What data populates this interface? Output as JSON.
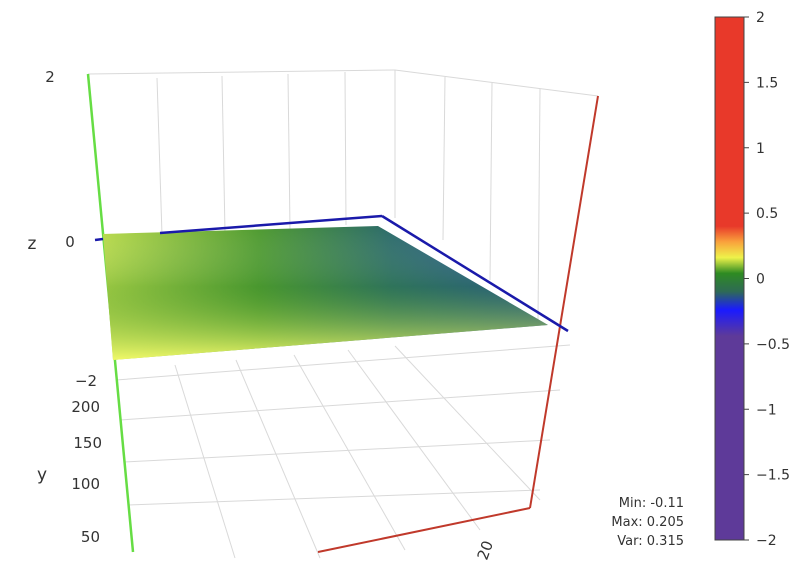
{
  "chart_data": {
    "type": "surface",
    "axes": {
      "z": {
        "label": "z",
        "ticks": [
          "2",
          "0",
          "−2"
        ],
        "range": [
          -2,
          2
        ]
      },
      "y": {
        "label": "y",
        "ticks": [
          "200",
          "150",
          "100",
          "50"
        ]
      },
      "x": {
        "label": "",
        "ticks": [
          "20"
        ]
      }
    },
    "grid": true,
    "colorbar": {
      "range": [
        -2,
        2
      ],
      "ticks": [
        "2",
        "1.5",
        "1",
        "0.5",
        "0",
        "−0.5",
        "−1",
        "−1.5",
        "−2"
      ],
      "colors": {
        "top": "#e8392a",
        "upper_band": "#e8392a",
        "orange": "#f9a23c",
        "yellow": "#eef24a",
        "green": "#2e8b22",
        "blue": "#1a1aff",
        "purple": "#5e3a99"
      }
    },
    "surface_colors": [
      "#f4fb6a",
      "#a4cc3a",
      "#3a8f2a",
      "#2e5f7c",
      "#284a9a"
    ],
    "axis_colors": {
      "x": "#c0392b",
      "y": "#66dd44",
      "z": "#1a1aaa"
    }
  },
  "stats": {
    "min": "Min: -0.11",
    "max": "Max: 0.205",
    "var": "Var: 0.315"
  }
}
